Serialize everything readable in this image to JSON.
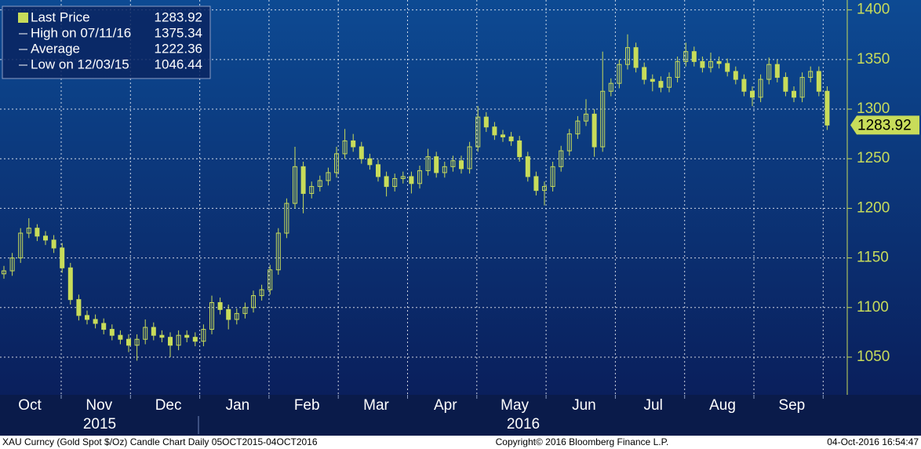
{
  "chart_data": {
    "type": "candlestick",
    "legend": [
      {
        "name": "Last Price",
        "value": 1283.92
      },
      {
        "name": "High on 07/11/16",
        "value": 1375.34
      },
      {
        "name": "Average",
        "value": 1222.36
      },
      {
        "name": "Low on 12/03/15",
        "value": 1046.44
      }
    ],
    "months": [
      "Oct",
      "Nov",
      "Dec",
      "Jan",
      "Feb",
      "Mar",
      "Apr",
      "May",
      "Jun",
      "Jul",
      "Aug",
      "Sep"
    ],
    "years": [
      "2015",
      "2016"
    ],
    "footer_left": "XAU Curncy (Gold Spot  $/Oz) Candle Chart  Daily 05OCT2015-04OCT2016",
    "footer_center": "Copyright© 2016 Bloomberg Finance L.P.",
    "footer_right": "04-Oct-2016 16:54:47",
    "color": "#c8dc5a",
    "grid": true,
    "ylim": [
      1012,
      1410
    ],
    "yticks": [
      1050,
      1100,
      1150,
      1200,
      1250,
      1300,
      1350,
      1400
    ],
    "open": [
      1134,
      1137,
      1150,
      1175,
      1180,
      1172,
      1168,
      1160,
      1140,
      1108,
      1092,
      1088,
      1084,
      1078,
      1072,
      1068,
      1062,
      1068,
      1080,
      1072,
      1070,
      1062,
      1072,
      1070,
      1066,
      1078,
      1105,
      1098,
      1088,
      1094,
      1100,
      1112,
      1118,
      1138,
      1175,
      1205,
      1242,
      1215,
      1222,
      1228,
      1236,
      1255,
      1268,
      1262,
      1250,
      1244,
      1232,
      1222,
      1230,
      1232,
      1225,
      1238,
      1252,
      1236,
      1242,
      1248,
      1240,
      1262,
      1292,
      1282,
      1274,
      1272,
      1268,
      1252,
      1232,
      1218,
      1222,
      1242,
      1258,
      1275,
      1288,
      1295,
      1262,
      1318,
      1326,
      1345,
      1362,
      1342,
      1330,
      1328,
      1322,
      1332,
      1348,
      1358,
      1348,
      1342,
      1348,
      1346,
      1338,
      1330,
      1318,
      1312,
      1330,
      1345,
      1332,
      1318,
      1312,
      1332,
      1338,
      1318
    ],
    "high": [
      1142,
      1155,
      1180,
      1190,
      1184,
      1177,
      1173,
      1165,
      1145,
      1113,
      1097,
      1093,
      1089,
      1083,
      1077,
      1073,
      1073,
      1088,
      1085,
      1077,
      1075,
      1077,
      1077,
      1075,
      1083,
      1112,
      1110,
      1103,
      1099,
      1105,
      1117,
      1123,
      1143,
      1180,
      1210,
      1262,
      1247,
      1227,
      1233,
      1241,
      1262,
      1280,
      1275,
      1267,
      1255,
      1249,
      1237,
      1235,
      1237,
      1237,
      1243,
      1260,
      1257,
      1247,
      1253,
      1253,
      1267,
      1303,
      1297,
      1287,
      1279,
      1277,
      1273,
      1257,
      1237,
      1227,
      1247,
      1263,
      1280,
      1293,
      1310,
      1300,
      1358,
      1331,
      1350,
      1375.34,
      1367,
      1347,
      1335,
      1333,
      1337,
      1353,
      1367,
      1363,
      1353,
      1357,
      1353,
      1351,
      1343,
      1335,
      1323,
      1335,
      1352,
      1350,
      1337,
      1323,
      1337,
      1343,
      1343,
      1323
    ],
    "low": [
      1129,
      1132,
      1145,
      1170,
      1167,
      1163,
      1155,
      1135,
      1103,
      1087,
      1083,
      1079,
      1073,
      1067,
      1063,
      1055,
      1046.44,
      1063,
      1067,
      1065,
      1050,
      1057,
      1065,
      1061,
      1061,
      1073,
      1093,
      1078,
      1083,
      1089,
      1095,
      1107,
      1113,
      1133,
      1170,
      1200,
      1195,
      1210,
      1217,
      1223,
      1231,
      1250,
      1257,
      1245,
      1239,
      1227,
      1212,
      1217,
      1225,
      1215,
      1220,
      1233,
      1231,
      1231,
      1237,
      1235,
      1235,
      1257,
      1277,
      1269,
      1267,
      1263,
      1247,
      1227,
      1213,
      1203,
      1217,
      1237,
      1253,
      1270,
      1283,
      1252,
      1257,
      1313,
      1321,
      1340,
      1337,
      1325,
      1318,
      1317,
      1317,
      1327,
      1343,
      1343,
      1337,
      1337,
      1341,
      1333,
      1325,
      1313,
      1303,
      1307,
      1325,
      1327,
      1313,
      1307,
      1307,
      1327,
      1313,
      1279
    ],
    "close": [
      1137,
      1150,
      1175,
      1180,
      1172,
      1168,
      1160,
      1140,
      1108,
      1092,
      1088,
      1084,
      1078,
      1072,
      1068,
      1062,
      1068,
      1080,
      1072,
      1070,
      1062,
      1072,
      1070,
      1066,
      1078,
      1105,
      1098,
      1088,
      1094,
      1100,
      1112,
      1118,
      1138,
      1175,
      1205,
      1242,
      1215,
      1222,
      1228,
      1236,
      1255,
      1268,
      1262,
      1250,
      1244,
      1232,
      1222,
      1230,
      1232,
      1225,
      1238,
      1252,
      1236,
      1242,
      1248,
      1240,
      1262,
      1292,
      1282,
      1274,
      1272,
      1268,
      1252,
      1232,
      1218,
      1222,
      1242,
      1258,
      1275,
      1288,
      1295,
      1262,
      1318,
      1326,
      1345,
      1362,
      1342,
      1330,
      1328,
      1322,
      1332,
      1348,
      1358,
      1348,
      1342,
      1348,
      1346,
      1338,
      1330,
      1318,
      1312,
      1330,
      1345,
      1332,
      1318,
      1312,
      1332,
      1338,
      1318,
      1283.92
    ]
  }
}
